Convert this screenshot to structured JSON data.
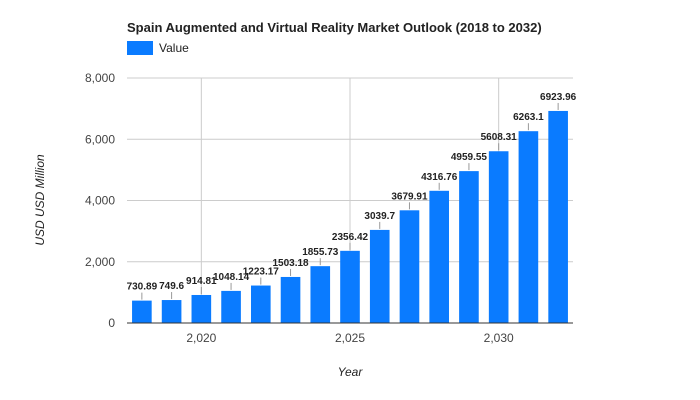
{
  "chart_data": {
    "type": "bar",
    "title": "Spain Augmented and Virtual Reality Market Outlook (2018 to 2032)",
    "xlabel": "Year",
    "ylabel": "USD USD Million",
    "series": [
      {
        "name": "Value",
        "color": "#0a7bff",
        "x": [
          2018,
          2019,
          2020,
          2021,
          2022,
          2023,
          2024,
          2025,
          2026,
          2027,
          2028,
          2029,
          2030,
          2031,
          2032
        ],
        "values": [
          730.89,
          749.6,
          914.81,
          1048.14,
          1223.17,
          1503.18,
          1855.73,
          2356.42,
          3039.7,
          3679.91,
          4316.76,
          4959.55,
          5608.31,
          6263.1,
          6923.96
        ],
        "labels": [
          "730.89",
          "749.6",
          "914.81",
          "1048.14",
          "1223.17",
          "1503.18",
          "1855.73",
          "2356.42",
          "3039.7",
          "3679.91",
          "4316.76",
          "4959.55",
          "5608.31",
          "6263.1",
          "6923.96"
        ]
      }
    ],
    "ylim": [
      0,
      8000
    ],
    "yticks": [
      0,
      2000,
      4000,
      6000,
      8000
    ],
    "ytick_labels": [
      "0",
      "2,000",
      "4,000",
      "6,000",
      "8,000"
    ],
    "xlim": [
      2017.5,
      2032.5
    ],
    "xticks": [
      2020,
      2025,
      2030
    ],
    "xtick_labels": [
      "2,020",
      "2,025",
      "2,030"
    ],
    "grid": true,
    "legend_position": "top-left"
  }
}
